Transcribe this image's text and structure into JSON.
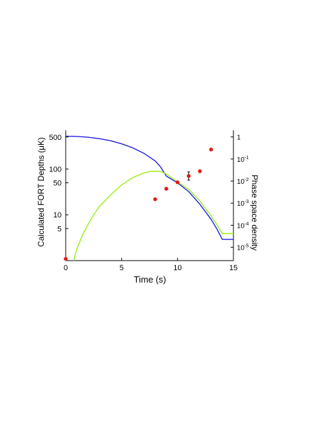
{
  "chart_data": {
    "type": "line",
    "title": "",
    "xlabel": "Time (s)",
    "ylabel_left": "Calculated FORT Depths (μK)",
    "ylabel_right": "Phase space density",
    "x_ticks": [
      {
        "value": 0,
        "label": "0"
      },
      {
        "value": 5,
        "label": "5"
      },
      {
        "value": 10,
        "label": "10"
      },
      {
        "value": 15,
        "label": "15"
      }
    ],
    "y_left_scale": "log",
    "y_left_ticks": [
      {
        "value": 5,
        "label": "5"
      },
      {
        "value": 10,
        "label": "10"
      },
      {
        "value": 50,
        "label": "50"
      },
      {
        "value": 100,
        "label": "100"
      },
      {
        "value": 500,
        "label": "500"
      }
    ],
    "y_right_scale": "log",
    "y_right_ticks": [
      {
        "value": 1,
        "base": "1",
        "exp": ""
      },
      {
        "value": 0.1,
        "base": "10",
        "exp": "-1"
      },
      {
        "value": 0.01,
        "base": "10",
        "exp": "-2"
      },
      {
        "value": 0.001,
        "base": "10",
        "exp": "-3"
      },
      {
        "value": 0.0001,
        "base": "10",
        "exp": "-4"
      },
      {
        "value": 1e-05,
        "base": "10",
        "exp": "-5"
      }
    ],
    "grid": false,
    "series": [
      {
        "color": "#1f1fdc",
        "axis": "left",
        "style": "line",
        "points": [
          [
            0,
            520
          ],
          [
            1,
            515
          ],
          [
            2,
            495
          ],
          [
            3,
            460
          ],
          [
            4,
            415
          ],
          [
            5,
            355
          ],
          [
            6,
            290
          ],
          [
            7,
            220
          ],
          [
            8,
            150
          ],
          [
            8.5,
            110
          ],
          [
            9,
            70
          ],
          [
            10,
            50
          ],
          [
            11,
            32
          ],
          [
            12,
            17
          ],
          [
            13,
            8
          ],
          [
            13.5,
            5
          ],
          [
            14,
            2.9
          ],
          [
            15,
            2.9
          ]
        ]
      },
      {
        "color": "#9aee1a",
        "axis": "left",
        "style": "line",
        "points": [
          [
            0.7,
            1.0
          ],
          [
            1,
            1.8
          ],
          [
            1.5,
            3.6
          ],
          [
            2,
            6.2
          ],
          [
            2.5,
            10
          ],
          [
            3,
            15
          ],
          [
            4,
            27
          ],
          [
            5,
            45
          ],
          [
            6,
            65
          ],
          [
            7,
            82
          ],
          [
            7.5,
            88
          ],
          [
            8,
            90
          ],
          [
            8.5,
            88
          ],
          [
            9,
            78
          ],
          [
            10,
            52
          ],
          [
            11,
            36
          ],
          [
            12,
            20
          ],
          [
            13,
            9.5
          ],
          [
            13.5,
            6.2
          ],
          [
            14,
            3.9
          ],
          [
            15,
            3.9
          ]
        ]
      },
      {
        "color": "#e31a1a",
        "axis": "right",
        "style": "scatter",
        "points": [
          {
            "x": 0,
            "y": 3e-06
          },
          {
            "x": 8,
            "y": 0.0015
          },
          {
            "x": 9,
            "y": 0.0045
          },
          {
            "x": 10,
            "y": 0.0088
          },
          {
            "x": 11,
            "y": 0.017,
            "err_low": 0.011,
            "err_high": 0.026
          },
          {
            "x": 12,
            "y": 0.028
          },
          {
            "x": 13,
            "y": 0.27
          }
        ]
      }
    ]
  }
}
